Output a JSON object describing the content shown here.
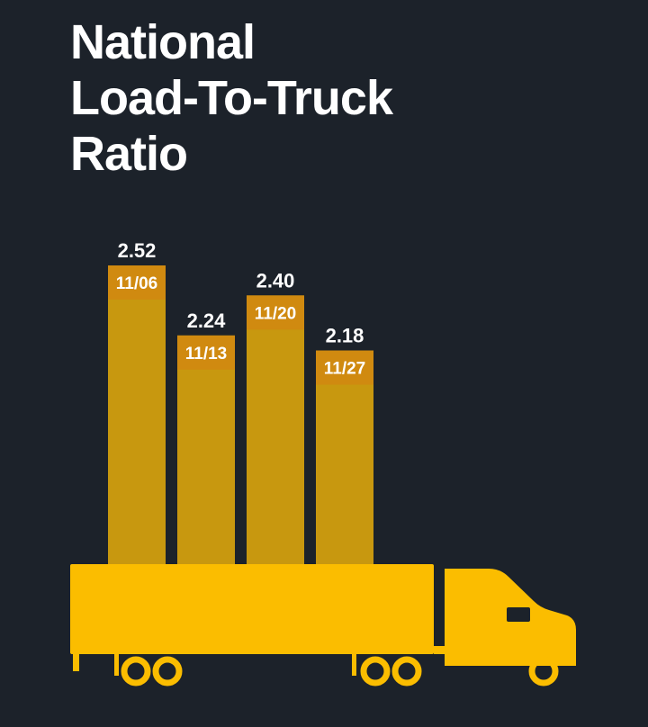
{
  "title_lines": [
    "National",
    "Load-To-Truck",
    "Ratio"
  ],
  "colors": {
    "background": "#1c222a",
    "bar": "#c8980f",
    "bar_label_band": "#d08a10",
    "truck": "#fbbd00",
    "text": "#ffffff"
  },
  "chart_data": {
    "type": "bar",
    "title": "National Load-To-Truck Ratio",
    "categories": [
      "11/06",
      "11/13",
      "11/20",
      "11/27"
    ],
    "values": [
      2.52,
      2.24,
      2.4,
      2.18
    ],
    "value_labels": [
      "2.52",
      "2.24",
      "2.40",
      "2.18"
    ],
    "xlabel": "",
    "ylabel": "",
    "grid": false,
    "legend": "none"
  }
}
